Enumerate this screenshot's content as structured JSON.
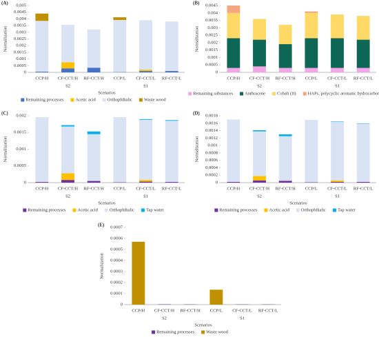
{
  "chart_data": [
    {
      "type": "stacked_bar",
      "label": "(A)",
      "ylabel": "Normalization",
      "xlabel": "Scenarios",
      "categories": [
        "CCP/H",
        "CF-CCT/H",
        "RF-CCT/H",
        "CCP/L",
        "CF-CCT/L",
        "RF-CCT/L"
      ],
      "group_labels": [
        "S2",
        "S1"
      ],
      "ylim": [
        0,
        0.005
      ],
      "yticks": [
        0,
        0.0005,
        0.001,
        0.0015,
        0.002,
        0.0025,
        0.003,
        0.0035,
        0.004,
        0.0045,
        0.005
      ],
      "series": [
        {
          "name": "Remaining processes",
          "color": "#4472c4",
          "values": [
            5e-05,
            0.0003,
            0.00035,
            2e-05,
            0.0001,
            0.0001
          ]
        },
        {
          "name": "Acetic acid",
          "color": "#ffc000",
          "values": [
            0,
            0.00045,
            0,
            0,
            0.0001,
            0
          ]
        },
        {
          "name": "Orthophthalic",
          "color": "#dae3f3",
          "values": [
            0.0038,
            0.0028,
            0.00285,
            0.0039,
            0.0037,
            0.0037
          ]
        },
        {
          "name": "Waste wood",
          "color": "#bf9000",
          "values": [
            0.00055,
            0,
            0,
            0.0002,
            0,
            0
          ]
        }
      ]
    },
    {
      "type": "stacked_bar",
      "label": "(B)",
      "ylabel": "Normalization",
      "categories": [
        "CCP/H",
        "CF-CCT/H",
        "RF-CCT/H",
        "CCP/L",
        "CF-CCT/L",
        "RF-CCT/L"
      ],
      "group_labels": [
        "S2",
        "S1"
      ],
      "ylim": [
        0,
        0.0045
      ],
      "yticks": [
        0,
        0.0005,
        0.001,
        0.0015,
        0.002,
        0.0025,
        0.003,
        0.0035,
        0.004,
        0.0045
      ],
      "series": [
        {
          "name": "Remaining substances",
          "color": "#f2a6e8",
          "values": [
            0.0003,
            0.0004,
            0.0003,
            0.0003,
            0.0003,
            0.0003
          ]
        },
        {
          "name": "Anthracene",
          "color": "#0e6655",
          "values": [
            0.002,
            0.0018,
            0.0016,
            0.002,
            0.002,
            0.0019
          ]
        },
        {
          "name": "Cobalt (II)",
          "color": "#ffd966",
          "values": [
            0.0017,
            0.0014,
            0.0013,
            0.0017,
            0.0016,
            0.0016
          ]
        },
        {
          "name": "HAPs, polycyclic aromatic hydrocarbons",
          "color": "#f4a582",
          "values": [
            0.0005,
            0,
            0,
            0.0001,
            0,
            0
          ]
        }
      ]
    },
    {
      "type": "stacked_bar",
      "label": "(C)",
      "ylabel": "Normalization",
      "xlabel": "Scenarios",
      "categories": [
        "CCP/H",
        "CF-CCT/H",
        "RF-CCT/H",
        "CCP/L",
        "CF-CCT/L",
        "RF-CCT/L"
      ],
      "group_labels": [
        "S2",
        "S1"
      ],
      "ylim": [
        0,
        0.002
      ],
      "yticks": [
        0,
        0.0005,
        0.001,
        0.0015,
        0.002
      ],
      "series": [
        {
          "name": "Remaining processes",
          "color": "#7030a0",
          "values": [
            2e-05,
            8e-05,
            5e-05,
            1e-05,
            3e-05,
            2e-05
          ]
        },
        {
          "name": "Acetic acid",
          "color": "#ffc000",
          "values": [
            0,
            0.0002,
            0,
            0,
            5e-05,
            0
          ]
        },
        {
          "name": "Orthophthalic",
          "color": "#dae3f3",
          "values": [
            0.00194,
            0.0014,
            0.0014,
            0.00195,
            0.0018,
            0.00183
          ]
        },
        {
          "name": "Tap water",
          "color": "#00b0f0",
          "values": [
            0,
            4e-05,
            8e-05,
            0,
            2e-05,
            2e-05
          ]
        }
      ]
    },
    {
      "type": "stacked_bar",
      "label": "(D)",
      "ylabel": "Normalization",
      "xlabel": "Scenarios",
      "categories": [
        "CCP/H",
        "CF-CCT/H",
        "RF-CCT/H",
        "CCP/L",
        "CF-CCT/L",
        "RF-CCT/L"
      ],
      "group_labels": [
        "S2",
        "S1"
      ],
      "ylim": [
        0,
        0.0018
      ],
      "yticks": [
        0,
        0.0002,
        0.0004,
        0.0006,
        0.0008,
        0.001,
        0.0012,
        0.0014,
        0.0016,
        0.0018
      ],
      "series": [
        {
          "name": "Remaining processes",
          "color": "#7030a0",
          "values": [
            2e-05,
            6e-05,
            5e-05,
            1e-05,
            2e-05,
            2e-05
          ]
        },
        {
          "name": "Acetic acid",
          "color": "#ffc000",
          "values": [
            0,
            0.00012,
            0,
            0,
            4e-05,
            0
          ]
        },
        {
          "name": "Orthophthalic",
          "color": "#dae3f3",
          "values": [
            0.00168,
            0.0012,
            0.0012,
            0.00168,
            0.00158,
            0.00156
          ]
        },
        {
          "name": "Tap water",
          "color": "#00b0f0",
          "values": [
            0,
            3e-05,
            5e-05,
            0,
            1e-05,
            1e-05
          ]
        }
      ]
    },
    {
      "type": "stacked_bar",
      "label": "(E)",
      "ylabel": "Normalization",
      "xlabel": "Scenarios",
      "categories": [
        "CCP/H",
        "CF-CCT/H",
        "RF-CCT/H",
        "CCP/L",
        "CF-CCT/L",
        "RF-CCT/L"
      ],
      "group_labels": [
        "S2",
        "S1"
      ],
      "ylim": [
        0,
        0.0007
      ],
      "yticks": [
        0,
        0.0001,
        0.0002,
        0.0003,
        0.0004,
        0.0005,
        0.0006,
        0.0007
      ],
      "series": [
        {
          "name": "Remaining processes",
          "color": "#7030a0",
          "values": [
            0,
            3e-06,
            2e-06,
            0,
            2e-06,
            2e-06
          ]
        },
        {
          "name": "Waste wood",
          "color": "#bf9000",
          "values": [
            0.00057,
            0,
            0,
            0.000135,
            0,
            0
          ]
        }
      ]
    }
  ]
}
